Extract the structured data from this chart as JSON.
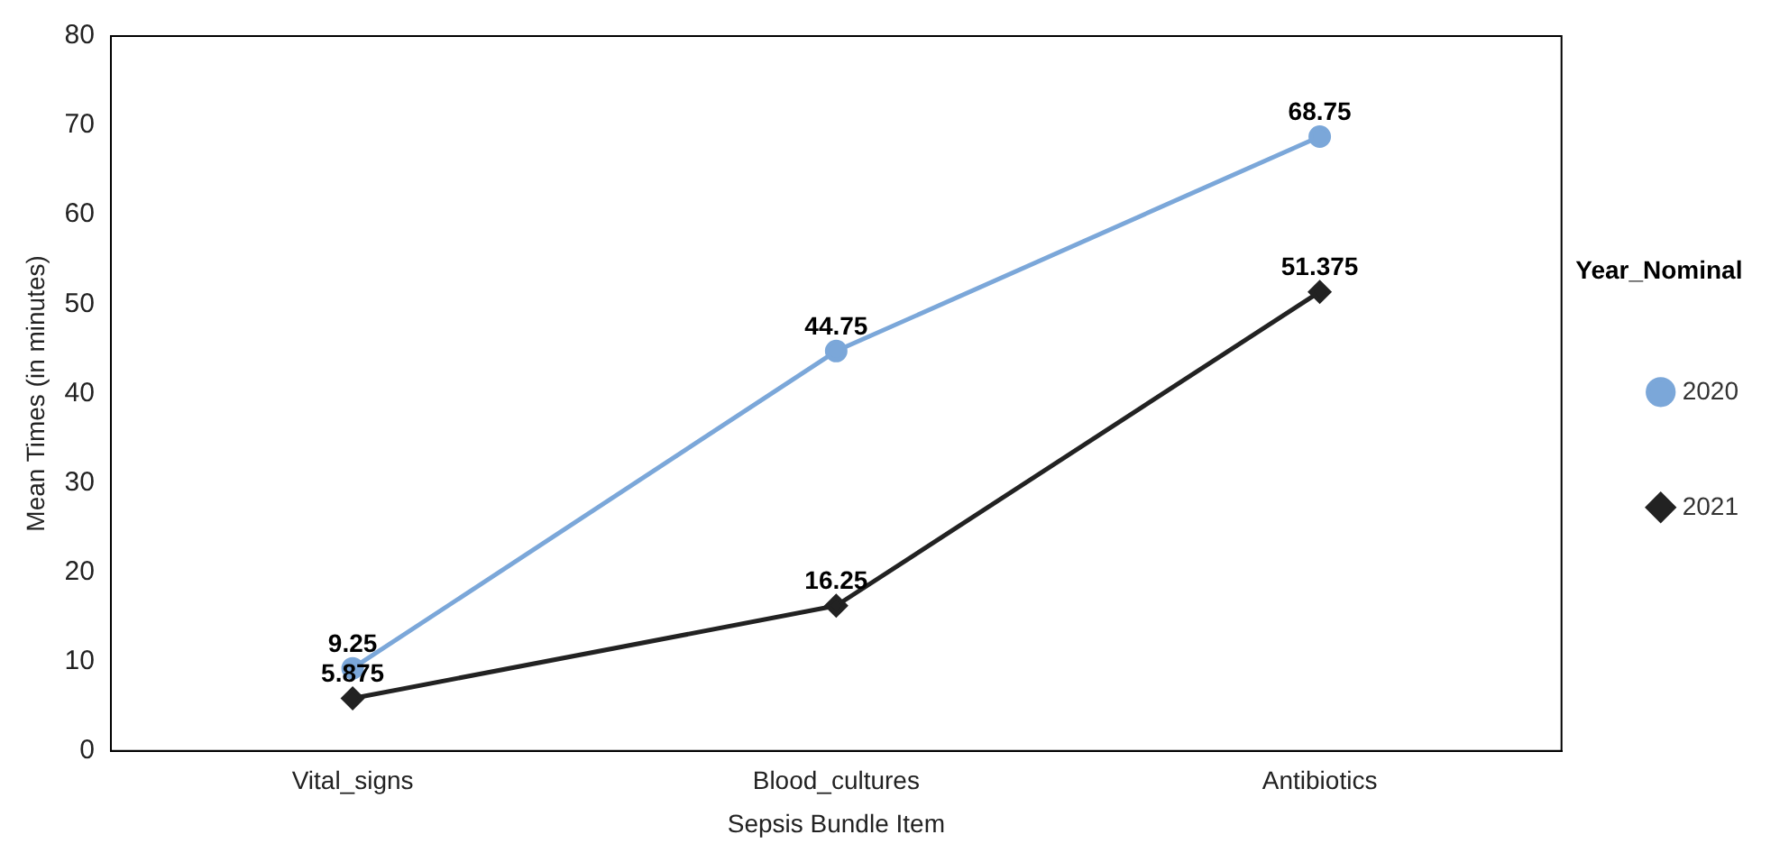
{
  "chart_data": {
    "type": "line",
    "xlabel": "Sepsis Bundle Item",
    "ylabel": "Mean Times (in minutes)",
    "legend_title": "Year_Nominal",
    "categories": [
      "Vital_signs",
      "Blood_cultures",
      "Antibiotics"
    ],
    "series": [
      {
        "name": "2020",
        "color": "#7ba7d9",
        "values": [
          9.25,
          44.75,
          68.75
        ],
        "marker": "circle"
      },
      {
        "name": "2021",
        "color": "#222222",
        "values": [
          5.875,
          16.25,
          51.375
        ],
        "marker": "diamond"
      }
    ],
    "ylim": [
      0,
      80
    ],
    "yticks": [
      0,
      10,
      20,
      30,
      40,
      50,
      60,
      70,
      80
    ],
    "grid": false,
    "legend": "right",
    "data_labels": true,
    "line_style": "solid"
  }
}
